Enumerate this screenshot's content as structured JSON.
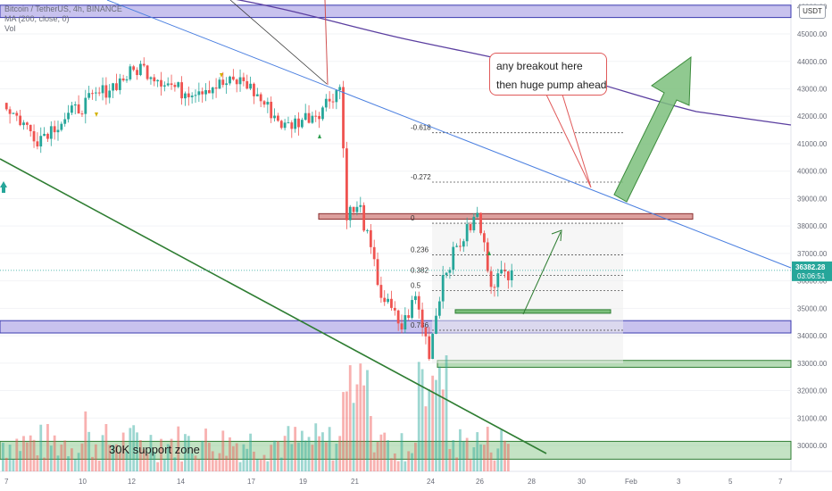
{
  "header": {
    "symbol_line": "Bitcoin / TetherUS, 4h, BINANCE",
    "ma_line": "MA (200, close, 0)",
    "vol_label": "Vol"
  },
  "currency_button": "USDT",
  "price_badge": {
    "price": "36382.28",
    "countdown": "03:06:51",
    "color": "#26a69a"
  },
  "callout": {
    "line1": "any breakout here",
    "line2": "then huge pump ahead"
  },
  "zone_label": "30K support zone",
  "fib_labels": [
    "-0.618",
    "-0.272",
    "0",
    "0.236",
    "0.382",
    "0.5",
    "0.786"
  ],
  "colors": {
    "up": "#26a69a",
    "down": "#ef5350",
    "ma": "#5b3fa0",
    "trendline": "#4a7fe0",
    "support_line": "#2e7d32",
    "purple_zone": "#9a8fe0",
    "green_zone": "#7cc07c",
    "resistance": "#c0504d"
  },
  "chart_data": {
    "type": "candlestick",
    "title": "Bitcoin / TetherUS, 4h, BINANCE",
    "y_axis": {
      "ticks": [
        30000,
        31000,
        32000,
        33000,
        34000,
        35000,
        36000,
        37000,
        38000,
        39000,
        40000,
        41000,
        42000,
        43000,
        44000,
        45000,
        46000
      ],
      "range": [
        29500,
        46500
      ],
      "position": "right"
    },
    "x_axis": {
      "ticks": [
        "7",
        "10",
        "12",
        "14",
        "17",
        "19",
        "21",
        "24",
        "26",
        "28",
        "30",
        "Feb",
        "3",
        "5",
        "7"
      ]
    },
    "series": [
      {
        "name": "MA (200, close, 0)",
        "kind": "line"
      },
      {
        "name": "Vol",
        "kind": "volume"
      }
    ],
    "last_price": 36382.28,
    "fibonacci": [
      {
        "level": "-0.618",
        "price": 41400
      },
      {
        "level": "-0.272",
        "price": 39600
      },
      {
        "level": "0",
        "price": 38100
      },
      {
        "level": "0.236",
        "price": 36950
      },
      {
        "level": "0.382",
        "price": 36200
      },
      {
        "level": "0.5",
        "price": 35650
      },
      {
        "level": "0.786",
        "price": 34200
      }
    ],
    "zones": [
      {
        "name": "top purple zone",
        "from": 45600,
        "to": 46050
      },
      {
        "name": "purple support zone",
        "from": 34100,
        "to": 34550
      },
      {
        "name": "green support bar",
        "from": 32850,
        "to": 33100
      },
      {
        "name": "30K support zone",
        "from": 29500,
        "to": 30150
      }
    ],
    "resistance_band": {
      "from": 38250,
      "to": 38450
    },
    "legend": "top-left",
    "grid": true
  }
}
